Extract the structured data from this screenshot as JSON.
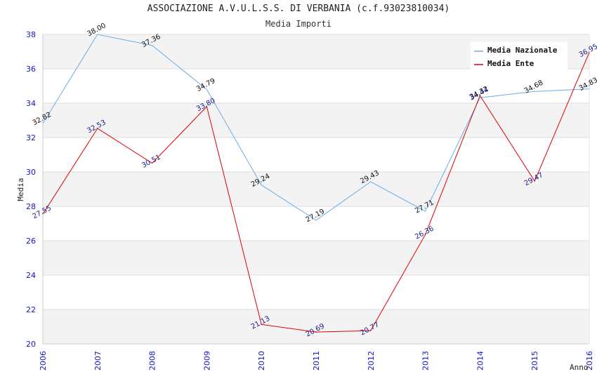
{
  "chart_data": {
    "type": "line",
    "title": "ASSOCIAZIONE A.V.U.L.S.S. DI VERBANIA (c.f.93023810034)",
    "subtitle": "Media Importi",
    "xlabel": "Anno",
    "ylabel": "Media",
    "x": [
      "2006",
      "2007",
      "2008",
      "2009",
      "2010",
      "2011",
      "2012",
      "2013",
      "2014",
      "2015",
      "2016"
    ],
    "ylim": [
      20,
      38
    ],
    "yticks": [
      20,
      22,
      24,
      26,
      28,
      30,
      32,
      34,
      36,
      38
    ],
    "grid": true,
    "legend_position": "top-right",
    "series": [
      {
        "name": "Media Nazionale",
        "color": "#6aaee8",
        "values": [
          32.82,
          38.0,
          37.36,
          34.79,
          29.24,
          27.19,
          29.43,
          27.71,
          34.32,
          34.68,
          34.83
        ],
        "labels": [
          "32.82",
          "38.00",
          "37.36",
          "34.79",
          "29.24",
          "27.19",
          "29.43",
          "27.71",
          "34.32",
          "34.68",
          "34.83"
        ]
      },
      {
        "name": "Media Ente",
        "color": "#e00000",
        "values": [
          27.55,
          32.53,
          30.51,
          33.8,
          21.13,
          20.69,
          20.77,
          26.36,
          34.44,
          29.47,
          36.95
        ],
        "labels": [
          "27.55",
          "32.53",
          "30.51",
          "33.80",
          "21.13",
          "20.69",
          "20.77",
          "26.36",
          "34.44",
          "29.47",
          "36.95"
        ]
      }
    ]
  }
}
